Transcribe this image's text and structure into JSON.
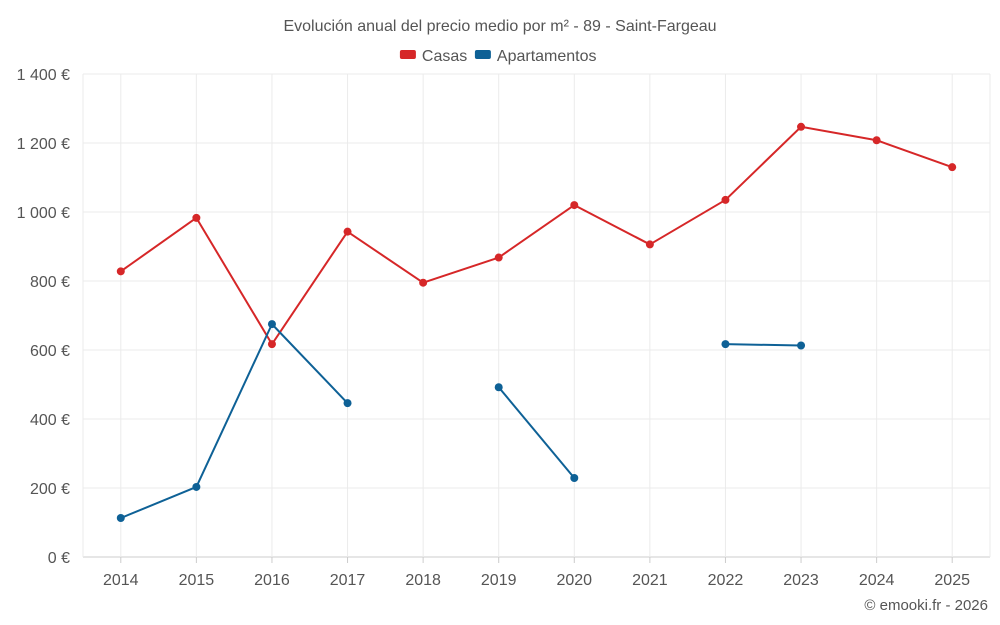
{
  "chart_data": {
    "type": "line",
    "title": "Evolución anual del precio medio por m² - 89 - Saint-Fargeau",
    "categories": [
      "2014",
      "2015",
      "2016",
      "2017",
      "2018",
      "2019",
      "2020",
      "2021",
      "2022",
      "2023",
      "2024",
      "2025"
    ],
    "ylim": [
      0,
      1400
    ],
    "y_ticks": [
      0,
      200,
      400,
      600,
      800,
      1000,
      1200,
      1400
    ],
    "y_tick_labels": [
      "0 €",
      "200 €",
      "400 €",
      "600 €",
      "800 €",
      "1 000 €",
      "1 200 €",
      "1 400 €"
    ],
    "grid": true,
    "legend_position": "top-center",
    "series": [
      {
        "name": "Casas",
        "color": "#d62728",
        "values": [
          828,
          983,
          617,
          943,
          795,
          868,
          1020,
          906,
          1035,
          1247,
          1208,
          1130
        ]
      },
      {
        "name": "Apartamentos",
        "color": "#0e6196",
        "values": [
          113,
          203,
          675,
          446,
          null,
          492,
          229,
          null,
          617,
          613,
          null,
          null
        ]
      }
    ]
  },
  "credit": "© emooki.fr - 2026"
}
